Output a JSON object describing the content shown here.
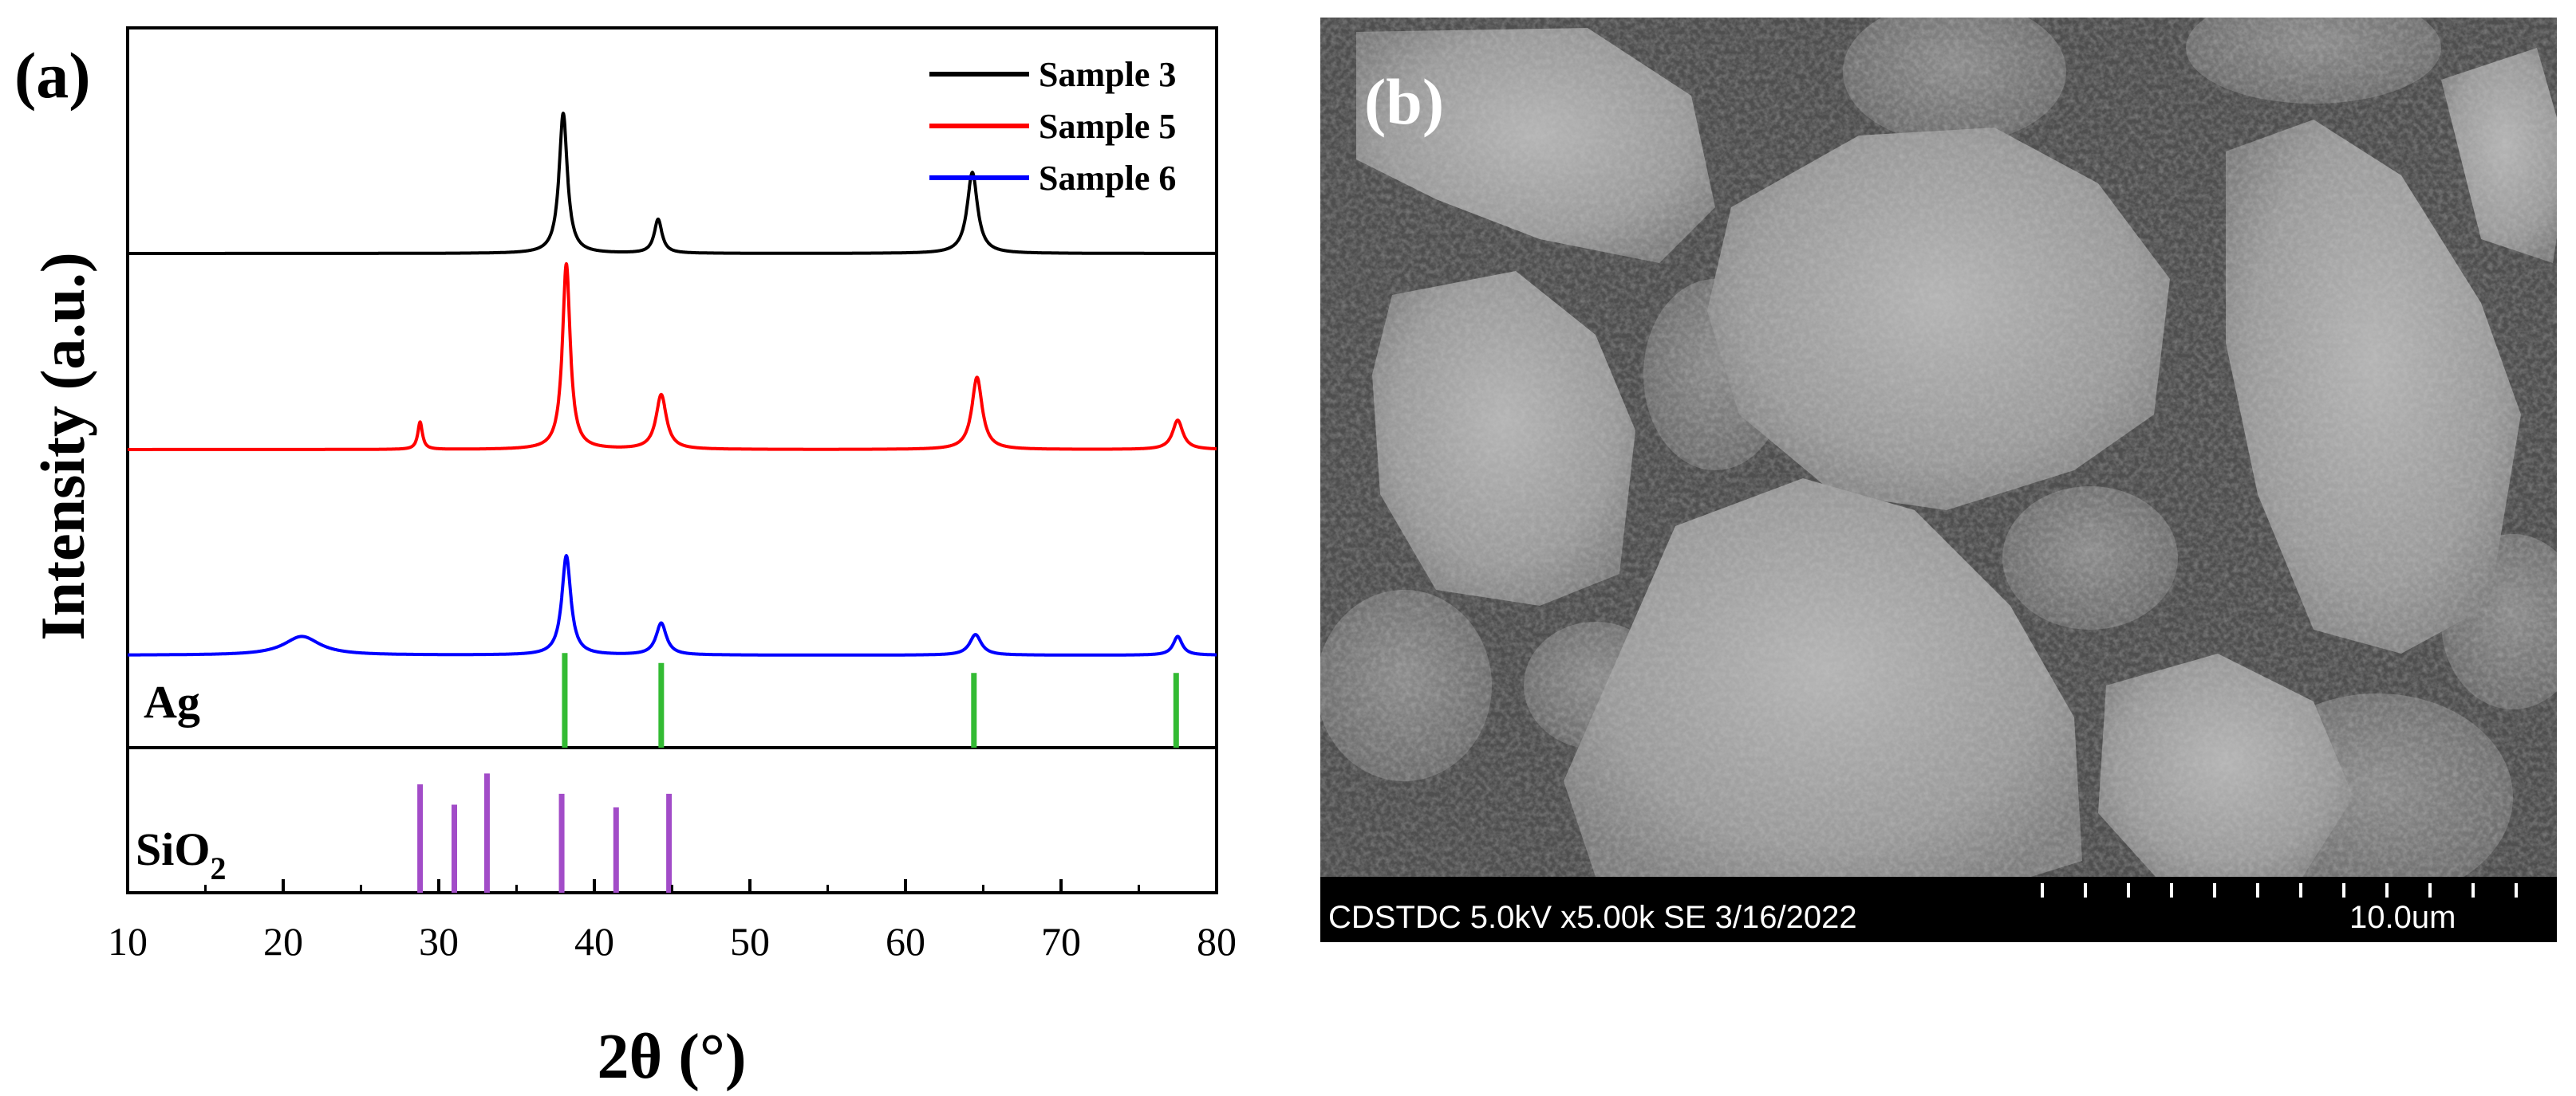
{
  "panel_a": {
    "label": "(a)",
    "chart_data": {
      "type": "line",
      "xlabel": "2θ (°)",
      "ylabel": "Intensity (a.u.)",
      "xlim": [
        10,
        80
      ],
      "x_ticks": [
        "10",
        "20",
        "30",
        "40",
        "50",
        "60",
        "70",
        "80"
      ],
      "legend_position": "top-right",
      "series": [
        {
          "name": "Sample 3",
          "color": "#000000",
          "peaks": [
            {
              "center": 38.0,
              "height": 0.95,
              "width": 0.32
            },
            {
              "center": 44.1,
              "height": 0.23,
              "width": 0.3
            },
            {
              "center": 64.3,
              "height": 0.55,
              "width": 0.4
            }
          ]
        },
        {
          "name": "Sample 5",
          "color": "#ff0000",
          "peaks": [
            {
              "center": 28.8,
              "height": 0.14,
              "width": 0.18
            },
            {
              "center": 38.2,
              "height": 0.95,
              "width": 0.3
            },
            {
              "center": 44.3,
              "height": 0.28,
              "width": 0.4
            },
            {
              "center": 64.6,
              "height": 0.37,
              "width": 0.4
            },
            {
              "center": 77.5,
              "height": 0.15,
              "width": 0.4
            }
          ]
        },
        {
          "name": "Sample 6",
          "color": "#0000ff",
          "peaks": [
            {
              "center": 21.2,
              "height": 0.1,
              "width": 1.4
            },
            {
              "center": 38.2,
              "height": 0.53,
              "width": 0.35
            },
            {
              "center": 44.3,
              "height": 0.17,
              "width": 0.4
            },
            {
              "center": 64.5,
              "height": 0.11,
              "width": 0.45
            },
            {
              "center": 77.5,
              "height": 0.1,
              "width": 0.35
            }
          ]
        }
      ],
      "references": [
        {
          "name": "Ag",
          "color": "#33bb33",
          "lines": [
            38.1,
            44.3,
            64.4,
            77.4
          ],
          "heights": [
            0.95,
            0.85,
            0.75,
            0.75
          ]
        },
        {
          "name": "SiO2",
          "label_main": "SiO",
          "label_sub": "2",
          "color": "#a24cc8",
          "lines": [
            28.8,
            31.0,
            33.1,
            37.9,
            41.4,
            44.8
          ],
          "heights": [
            0.8,
            0.65,
            0.88,
            0.73,
            0.63,
            0.73
          ]
        }
      ]
    }
  },
  "panel_b": {
    "label": "(b)",
    "info_text": "CDSTDC 5.0kV x5.00k SE 3/16/2022",
    "scale_text": "10.0um"
  }
}
